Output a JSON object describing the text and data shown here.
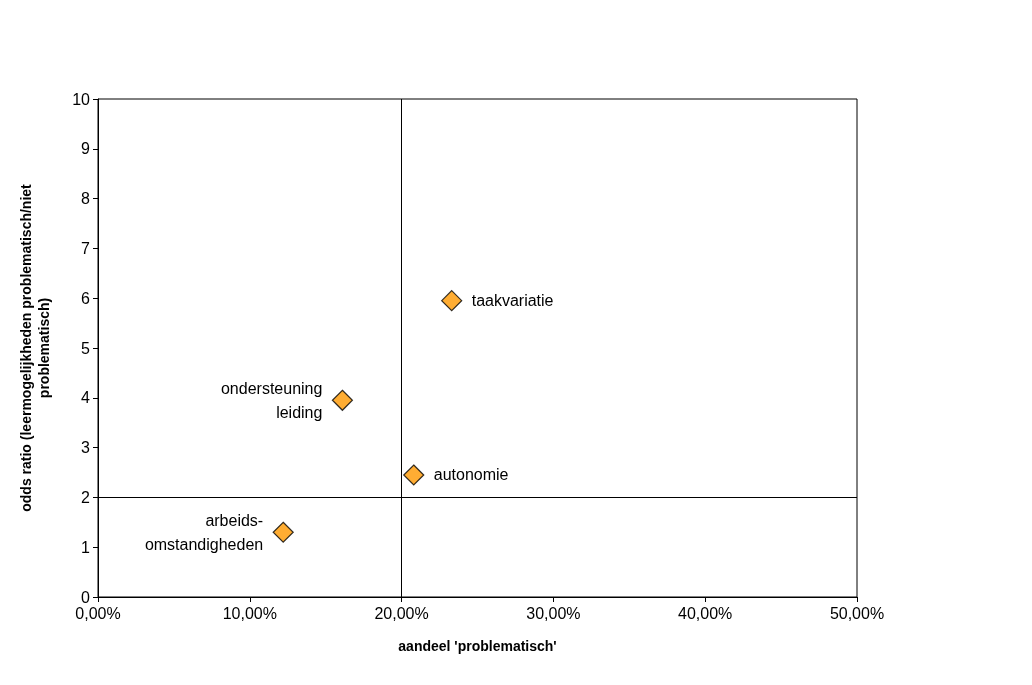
{
  "chart_data": {
    "type": "scatter",
    "xlabel": "aandeel 'problematisch'",
    "ylabel": "odds ratio (leermogelijkheden problematisch/niet\nproblematisch)",
    "x": [
      23.3,
      16.1,
      20.8,
      12.2
    ],
    "series": [
      {
        "color": "#ff9900",
        "values": [
          5.95,
          3.95,
          2.45,
          1.3
        ]
      }
    ],
    "marker": "diamond",
    "grid": false,
    "xlim": [
      0,
      50
    ],
    "xticks": [
      {
        "value": 0,
        "label": "0,00%"
      },
      {
        "value": 10,
        "label": "10,00%"
      },
      {
        "value": 20,
        "label": "20,00%"
      },
      {
        "value": 30,
        "label": "30,00%"
      },
      {
        "value": 40,
        "label": "40,00%"
      },
      {
        "value": 50,
        "label": "50,00%"
      }
    ],
    "ylim": [
      0,
      10
    ],
    "yticks": [
      0,
      1,
      2,
      3,
      4,
      5,
      6,
      7,
      8,
      9,
      10
    ],
    "ref_lines": [
      {
        "axis": "x",
        "value": 20,
        "color": "#000000"
      },
      {
        "axis": "y",
        "value": 2,
        "color": "#000000"
      }
    ],
    "annotations": [
      {
        "text": "taakvariatie",
        "x": 23.3,
        "y": 5.95
      },
      {
        "text": "ondersteuning\nleiding",
        "x": 16.1,
        "y": 3.95
      },
      {
        "text": "autonomie",
        "x": 20.8,
        "y": 2.45
      },
      {
        "text": "arbeids-\nomstandigheden",
        "x": 12.2,
        "y": 1.3
      }
    ]
  }
}
